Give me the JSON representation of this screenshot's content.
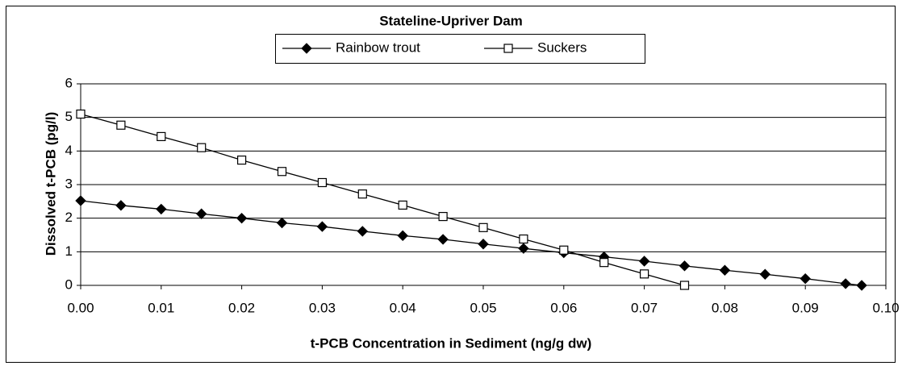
{
  "chart_data": {
    "type": "line",
    "title": "Stateline-Upriver Dam",
    "xlabel": "t-PCB Concentration in Sediment (ng/g dw)",
    "ylabel": "Dissolved t-PCB (pg/l)",
    "series": [
      {
        "name": "Rainbow trout",
        "color": "#000000",
        "marker": "diamond",
        "x": [
          0,
          0.005,
          0.01,
          0.015,
          0.02,
          0.025,
          0.03,
          0.035,
          0.04,
          0.045,
          0.05,
          0.055,
          0.06,
          0.065,
          0.07,
          0.075,
          0.08,
          0.085,
          0.09,
          0.095,
          0.097
        ],
        "values": [
          2.52,
          2.38,
          2.27,
          2.13,
          2.0,
          1.86,
          1.75,
          1.61,
          1.48,
          1.37,
          1.23,
          1.1,
          0.97,
          0.85,
          0.72,
          0.58,
          0.45,
          0.33,
          0.2,
          0.05,
          0.0
        ]
      },
      {
        "name": "Suckers",
        "color": "#000000",
        "marker": "square",
        "x": [
          0,
          0.005,
          0.01,
          0.015,
          0.02,
          0.025,
          0.03,
          0.035,
          0.04,
          0.045,
          0.05,
          0.055,
          0.06,
          0.065,
          0.07,
          0.075
        ],
        "values": [
          5.1,
          4.77,
          4.43,
          4.1,
          3.73,
          3.39,
          3.06,
          2.72,
          2.39,
          2.05,
          1.72,
          1.38,
          1.05,
          0.68,
          0.34,
          0.0
        ]
      }
    ],
    "xlim": [
      0,
      0.1
    ],
    "xticks": [
      {
        "value": 0,
        "label": "0.00"
      },
      0.01,
      0.02,
      0.03,
      0.04,
      0.05,
      0.06,
      0.07,
      0.08,
      0.09,
      {
        "value": 0.1,
        "label": "0.10"
      }
    ],
    "ylim": [
      0,
      6
    ],
    "yticks": [
      0,
      1,
      2,
      3,
      4,
      5,
      6
    ],
    "grid": true,
    "legend": "top"
  }
}
